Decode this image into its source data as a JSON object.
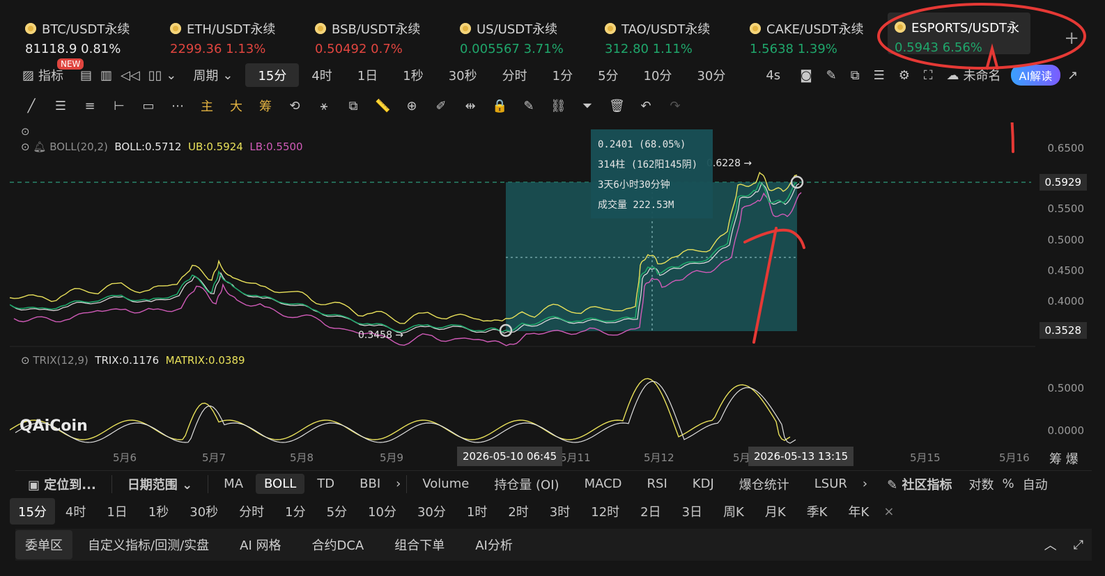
{
  "tickers": [
    {
      "name": "BTC/USDT永续",
      "price": "81118.9",
      "change": "0.81%",
      "tone": "white"
    },
    {
      "name": "ETH/USDT永续",
      "price": "2299.36",
      "change": "1.13%",
      "tone": "red"
    },
    {
      "name": "BSB/USDT永续",
      "price": "0.50492",
      "change": "0.7%",
      "tone": "red"
    },
    {
      "name": "US/USDT永续",
      "price": "0.005567",
      "change": "3.71%",
      "tone": "green"
    },
    {
      "name": "TAO/USDT永续",
      "price": "312.80",
      "change": "1.11%",
      "tone": "green"
    },
    {
      "name": "CAKE/USDT永续",
      "price": "1.5638",
      "change": "1.39%",
      "tone": "green"
    },
    {
      "name": "ESPORTS/USDT永",
      "price": "0.5943",
      "change": "6.56%",
      "tone": "green"
    }
  ],
  "toolbar": {
    "indicator": "指标",
    "new_badge": "NEW",
    "period": "周期",
    "periods": [
      "15分",
      "4时",
      "1日",
      "1秒",
      "30秒",
      "分时",
      "1分",
      "5分",
      "10分",
      "30分"
    ],
    "refresh": "4s",
    "unnamed": "未命名",
    "ai_interpret": "AI解读"
  },
  "drawtools": {
    "main": "主",
    "big": "大",
    "chip": "筹"
  },
  "boll_legend": {
    "name": "BOLL(20,2)",
    "boll": "BOLL:0.5712",
    "ub": "UB:0.5924",
    "lb": "LB:0.5500"
  },
  "trix_legend": {
    "name": "TRIX(12,9)",
    "trix": "TRIX:0.1176",
    "matrix": "MATRIX:0.0389"
  },
  "measure": {
    "change": "0.2401 (68.05%)",
    "bars": "314柱 (162阳145阴)",
    "duration": "3天6小时30分钟",
    "volume": "成交量 222.53M",
    "high_label": "0.6228 →",
    "low_label": "0.3458 →"
  },
  "price_axis": {
    "ticks": [
      "0.6500",
      "0.5500",
      "0.5000",
      "0.4500",
      "0.4000"
    ],
    "current": "0.5929",
    "lower": "0.3528"
  },
  "trix_axis": {
    "ticks": [
      "0.5000",
      "0.0000"
    ]
  },
  "date_axis": {
    "labels": [
      "5月6",
      "5月7",
      "5月8",
      "5月9",
      "5月11",
      "5月12",
      "5月",
      "4",
      "5月15",
      "5月16"
    ],
    "start_tag": "2026-05-10 06:45",
    "end_tag": "2026-05-13 13:15",
    "right_labels": "筹 爆"
  },
  "indicators": {
    "locate": "定位到...",
    "date_range": "日期范围",
    "items": [
      "MA",
      "BOLL",
      "TD",
      "BBI"
    ],
    "sub": [
      "Volume",
      "持仓量 (OI)",
      "MACD",
      "RSI",
      "KDJ",
      "爆仓统计",
      "LSUR"
    ],
    "community": "社区指标",
    "log": "对数",
    "percent": "%",
    "auto": "自动"
  },
  "period_bar": [
    "15分",
    "4时",
    "1日",
    "1秒",
    "30秒",
    "分时",
    "1分",
    "5分",
    "10分",
    "30分",
    "1时",
    "2时",
    "3时",
    "12时",
    "2日",
    "3日",
    "周K",
    "月K",
    "季K",
    "年K"
  ],
  "bottom": [
    "委单区",
    "自定义指标/回测/实盘",
    "AI 网格",
    "合约DCA",
    "组合下单",
    "AI分析"
  ],
  "watermark": "AiCoin",
  "colors": {
    "ub": "#e8e05a",
    "lb": "#d05bb8",
    "mid": "#e0e0e0",
    "up": "#1fa66b",
    "down": "#e0453f",
    "annot": "#e53935",
    "box": "#1b5e62"
  }
}
